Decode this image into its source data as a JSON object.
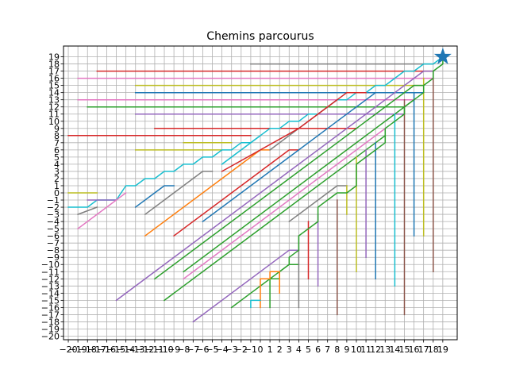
{
  "chart_data": {
    "type": "line",
    "title": "Chemins parcourus",
    "xlabel": "",
    "ylabel": "",
    "xlim": [
      -20.5,
      20.5
    ],
    "ylim": [
      -20.5,
      20.5
    ],
    "x_ticks": [
      -20,
      -19,
      -18,
      -17,
      -16,
      -15,
      -14,
      -13,
      -12,
      -11,
      -10,
      -9,
      -8,
      -7,
      -6,
      -5,
      -4,
      -3,
      -2,
      -1,
      0,
      1,
      2,
      3,
      4,
      5,
      6,
      7,
      8,
      9,
      10,
      11,
      12,
      13,
      14,
      15,
      16,
      17,
      18,
      19
    ],
    "y_ticks": [
      -20,
      -19,
      -18,
      -17,
      -16,
      -15,
      -14,
      -13,
      -12,
      -11,
      -10,
      -9,
      -8,
      -7,
      -6,
      -5,
      -4,
      -3,
      -2,
      -1,
      0,
      1,
      2,
      3,
      4,
      5,
      6,
      7,
      8,
      9,
      10,
      11,
      12,
      13,
      14,
      15,
      16,
      17,
      18,
      19
    ],
    "grid": true,
    "palette": [
      "#1f77b4",
      "#ff7f0e",
      "#2ca02c",
      "#d62728",
      "#9467bd",
      "#8c564b",
      "#e377c2",
      "#7f7f7f",
      "#bcbd22",
      "#17becf"
    ],
    "target": {
      "x": 19,
      "y": 19,
      "marker": "star",
      "color": "#1f77b4"
    },
    "series": [
      {
        "color": "#7f7f7f",
        "points": [
          [
            -1,
            18
          ],
          [
            17,
            18
          ],
          [
            18,
            18
          ]
        ]
      },
      {
        "color": "#d62728",
        "points": [
          [
            -17,
            17
          ],
          [
            15,
            17
          ],
          [
            18,
            17
          ]
        ]
      },
      {
        "color": "#e377c2",
        "points": [
          [
            -19,
            16
          ],
          [
            16,
            16
          ],
          [
            18,
            16
          ]
        ]
      },
      {
        "color": "#bcbd22",
        "points": [
          [
            -13,
            15
          ],
          [
            13,
            15
          ],
          [
            17,
            15
          ]
        ]
      },
      {
        "color": "#1f77b4",
        "points": [
          [
            -13,
            14
          ],
          [
            11,
            14
          ],
          [
            17,
            14
          ]
        ]
      },
      {
        "color": "#e377c2",
        "points": [
          [
            -19,
            13
          ],
          [
            9,
            13
          ],
          [
            16,
            13
          ]
        ]
      },
      {
        "color": "#2ca02c",
        "points": [
          [
            -18,
            12
          ],
          [
            8,
            12
          ],
          [
            15,
            12
          ]
        ]
      },
      {
        "color": "#9467bd",
        "points": [
          [
            -13,
            11
          ],
          [
            7,
            11
          ],
          [
            15,
            11
          ]
        ]
      },
      {
        "color": "#d62728",
        "points": [
          [
            -11,
            9
          ],
          [
            0,
            9
          ],
          [
            10,
            9
          ]
        ]
      },
      {
        "color": "#d62728",
        "points": [
          [
            -20,
            8
          ],
          [
            -1,
            8
          ]
        ]
      },
      {
        "color": "#bcbd22",
        "points": [
          [
            -8,
            7
          ],
          [
            -3,
            7
          ]
        ]
      },
      {
        "color": "#bcbd22",
        "points": [
          [
            -13,
            6
          ],
          [
            -4,
            6
          ]
        ]
      },
      {
        "color": "#17becf",
        "points": [
          [
            -20,
            -2
          ],
          [
            -18,
            -2
          ],
          [
            -17,
            -1
          ],
          [
            -15,
            -1
          ],
          [
            -14,
            1
          ],
          [
            -13,
            1
          ],
          [
            -12,
            2
          ],
          [
            -11,
            2
          ],
          [
            -10,
            3
          ],
          [
            -9,
            3
          ],
          [
            -8,
            4
          ],
          [
            -7,
            4
          ],
          [
            -6,
            5
          ],
          [
            -5,
            5
          ],
          [
            -4,
            6
          ],
          [
            -3,
            6
          ],
          [
            -2,
            7
          ],
          [
            -1,
            7
          ],
          [
            0,
            8
          ],
          [
            1,
            9
          ],
          [
            2,
            9
          ],
          [
            3,
            10
          ],
          [
            4,
            10
          ],
          [
            5,
            11
          ],
          [
            6,
            11
          ],
          [
            7,
            12
          ],
          [
            8,
            13
          ],
          [
            9,
            13
          ],
          [
            10,
            14
          ],
          [
            11,
            14
          ],
          [
            12,
            15
          ],
          [
            13,
            15
          ],
          [
            14,
            16
          ],
          [
            15,
            17
          ],
          [
            16,
            17
          ],
          [
            17,
            18
          ],
          [
            18,
            18
          ],
          [
            19,
            19
          ]
        ]
      },
      {
        "color": "#bcbd22",
        "points": [
          [
            -20,
            0
          ],
          [
            -17,
            0
          ]
        ]
      },
      {
        "color": "#9467bd",
        "points": [
          [
            -18,
            -1
          ],
          [
            -15,
            -1
          ]
        ]
      },
      {
        "color": "#7f7f7f",
        "points": [
          [
            -19,
            -3
          ],
          [
            -17,
            -2
          ]
        ]
      },
      {
        "color": "#e377c2",
        "points": [
          [
            -19,
            -5
          ],
          [
            -14,
            0
          ]
        ]
      },
      {
        "color": "#1f77b4",
        "points": [
          [
            -13,
            -2
          ],
          [
            -10,
            1
          ],
          [
            -9,
            1
          ]
        ]
      },
      {
        "color": "#7f7f7f",
        "points": [
          [
            -12,
            -3
          ],
          [
            -6,
            3
          ],
          [
            -5,
            3
          ]
        ]
      },
      {
        "color": "#ff7f0e",
        "points": [
          [
            -12,
            -6
          ],
          [
            0,
            6
          ],
          [
            1,
            6
          ]
        ]
      },
      {
        "color": "#d62728",
        "points": [
          [
            -9,
            -6
          ],
          [
            -2,
            1
          ],
          [
            3,
            6
          ],
          [
            4,
            6
          ]
        ]
      },
      {
        "color": "#1f77b4",
        "points": [
          [
            -6,
            -4
          ],
          [
            4,
            6
          ],
          [
            9,
            11
          ],
          [
            12,
            14
          ],
          [
            13,
            14
          ]
        ]
      },
      {
        "color": "#7f7f7f",
        "points": [
          [
            1,
            6
          ],
          [
            7,
            12
          ],
          [
            8,
            13
          ]
        ]
      },
      {
        "color": "#d62728",
        "points": [
          [
            -4,
            3
          ],
          [
            4,
            9
          ],
          [
            9,
            14
          ],
          [
            11,
            14
          ]
        ]
      },
      {
        "color": "#17becf",
        "points": [
          [
            -4,
            4
          ],
          [
            0,
            8
          ]
        ]
      },
      {
        "color": "#9467bd",
        "points": [
          [
            -15,
            -15
          ],
          [
            3,
            3
          ],
          [
            14,
            14
          ],
          [
            17,
            17
          ],
          [
            18,
            17
          ]
        ]
      },
      {
        "color": "#2ca02c",
        "points": [
          [
            -11,
            -12
          ],
          [
            3,
            2
          ],
          [
            10,
            9
          ],
          [
            16,
            15
          ],
          [
            17,
            15
          ]
        ]
      },
      {
        "color": "#2ca02c",
        "points": [
          [
            -8,
            -11
          ],
          [
            6,
            3
          ],
          [
            15,
            12
          ],
          [
            16,
            13
          ]
        ]
      },
      {
        "color": "#e377c2",
        "points": [
          [
            -8,
            -12
          ],
          [
            3,
            -1
          ],
          [
            13,
            9
          ]
        ]
      },
      {
        "color": "#2ca02c",
        "points": [
          [
            -10,
            -15
          ],
          [
            -8,
            -13
          ],
          [
            1,
            -4
          ],
          [
            12,
            7
          ],
          [
            13,
            8
          ]
        ]
      },
      {
        "color": "#7f7f7f",
        "points": [
          [
            3,
            -4
          ],
          [
            8,
            1
          ],
          [
            9,
            1
          ]
        ]
      },
      {
        "color": "#2ca02c",
        "points": [
          [
            -3,
            -16
          ],
          [
            3,
            -10
          ],
          [
            4,
            -10
          ]
        ]
      },
      {
        "color": "#9467bd",
        "points": [
          [
            -7,
            -18
          ],
          [
            3,
            -8
          ],
          [
            4,
            -8
          ]
        ]
      },
      {
        "color": "#bcbd22",
        "points": [
          [
            9,
            -3
          ],
          [
            9,
            1
          ]
        ]
      },
      {
        "color": "#bcbd22",
        "points": [
          [
            10,
            -11
          ],
          [
            10,
            5
          ]
        ]
      },
      {
        "color": "#9467bd",
        "points": [
          [
            6,
            -13
          ],
          [
            6,
            -3
          ]
        ]
      },
      {
        "color": "#d62728",
        "points": [
          [
            5,
            -12
          ],
          [
            5,
            -4
          ]
        ]
      },
      {
        "color": "#8c564b",
        "points": [
          [
            8,
            -17
          ],
          [
            8,
            -1
          ]
        ]
      },
      {
        "color": "#7f7f7f",
        "points": [
          [
            4,
            -16
          ],
          [
            4,
            -6
          ]
        ]
      },
      {
        "color": "#9467bd",
        "points": [
          [
            11,
            -9
          ],
          [
            11,
            6
          ]
        ]
      },
      {
        "color": "#1f77b4",
        "points": [
          [
            12,
            -12
          ],
          [
            12,
            7
          ]
        ]
      },
      {
        "color": "#17becf",
        "points": [
          [
            14,
            -13
          ],
          [
            14,
            11
          ]
        ]
      },
      {
        "color": "#8c564b",
        "points": [
          [
            15,
            -17
          ],
          [
            15,
            13
          ]
        ]
      },
      {
        "color": "#1f77b4",
        "points": [
          [
            16,
            -6
          ],
          [
            16,
            14
          ]
        ]
      },
      {
        "color": "#bcbd22",
        "points": [
          [
            17,
            -6
          ],
          [
            17,
            16
          ]
        ]
      },
      {
        "color": "#8c564b",
        "points": [
          [
            18,
            -11
          ],
          [
            18,
            17
          ]
        ]
      },
      {
        "color": "#2ca02c",
        "points": [
          [
            1,
            -16
          ],
          [
            1,
            -12
          ],
          [
            2,
            -12
          ],
          [
            2,
            -11
          ],
          [
            3,
            -10
          ],
          [
            3,
            -9
          ],
          [
            4,
            -8
          ],
          [
            4,
            -6
          ],
          [
            5,
            -5
          ],
          [
            6,
            -4
          ],
          [
            6,
            -2
          ],
          [
            7,
            -1
          ],
          [
            8,
            0
          ],
          [
            9,
            0
          ],
          [
            10,
            1
          ],
          [
            10,
            4
          ],
          [
            11,
            5
          ],
          [
            12,
            6
          ],
          [
            13,
            7
          ],
          [
            13,
            9
          ],
          [
            14,
            10
          ],
          [
            15,
            11
          ],
          [
            15,
            12
          ],
          [
            16,
            13
          ],
          [
            17,
            14
          ],
          [
            17,
            15
          ],
          [
            18,
            16
          ],
          [
            18,
            17
          ],
          [
            19,
            18
          ],
          [
            19,
            19
          ]
        ]
      },
      {
        "color": "#ff7f0e",
        "points": [
          [
            0,
            -16
          ],
          [
            0,
            -12
          ],
          [
            1,
            -12
          ],
          [
            1,
            -11
          ],
          [
            2,
            -11
          ],
          [
            2,
            -14
          ]
        ]
      },
      {
        "color": "#17becf",
        "points": [
          [
            -1,
            -16
          ],
          [
            -1,
            -15
          ],
          [
            0,
            -15
          ]
        ]
      }
    ]
  }
}
